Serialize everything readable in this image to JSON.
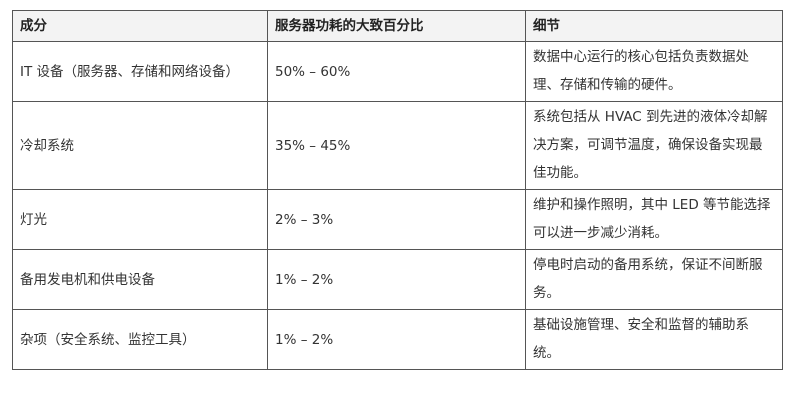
{
  "table": {
    "headers": [
      "成分",
      "服务器功耗的大致百分比",
      "细节"
    ],
    "rows": [
      {
        "component": "IT 设备（服务器、存储和网络设备）",
        "percent": "50% – 60%",
        "detail": "数据中心运行的核心包括负责数据处理、存储和传输的硬件。"
      },
      {
        "component": "冷却系统",
        "percent": "35% – 45%",
        "detail": "系统包括从 HVAC 到先进的液体冷却解决方案，可调节温度，确保设备实现最佳功能。"
      },
      {
        "component": "灯光",
        "percent": "2% – 3%",
        "detail": "维护和操作照明，其中 LED 等节能选择可以进一步减少消耗。"
      },
      {
        "component": "备用发电机和供电设备",
        "percent": "1% – 2%",
        "detail": "停电时启动的备用系统，保证不间断服务。"
      },
      {
        "component": "杂项（安全系统、监控工具）",
        "percent": "1% – 2%",
        "detail": "基础设施管理、安全和监督的辅助系统。"
      }
    ]
  }
}
